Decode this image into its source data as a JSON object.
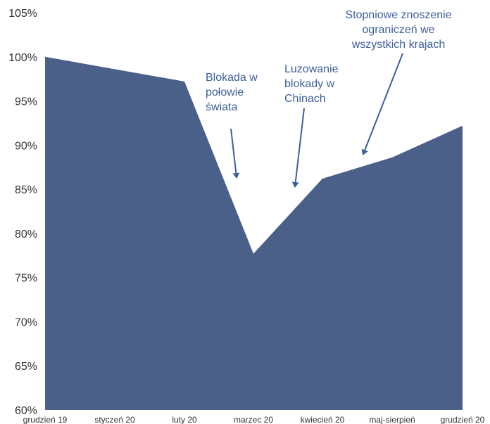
{
  "chart_data": {
    "type": "area",
    "title": "",
    "xlabel": "",
    "ylabel": "",
    "categories": [
      "grudzień 19",
      "styczeń 20",
      "luty 20",
      "marzec 20",
      "kwiecień 20",
      "maj-sierpień",
      "grudzień 20"
    ],
    "values": [
      100,
      98.6,
      97.2,
      77.7,
      86.2,
      88.6,
      92.2
    ],
    "ylim": [
      60,
      105
    ],
    "yticks": [
      "60%",
      "65%",
      "70%",
      "75%",
      "80%",
      "85%",
      "90%",
      "95%",
      "100%",
      "105%"
    ],
    "grid": false,
    "legend": "none",
    "colors": {
      "area": "#4a6088",
      "annotation_text": "#3c5f9a",
      "arrow": "#3c5f9a",
      "axis_text": "#333333"
    },
    "annotations": [
      {
        "lines": [
          "Blokada w",
          "połowie",
          "świata"
        ],
        "points_to_value": 87
      },
      {
        "lines": [
          "Luzowanie",
          "blokady w",
          "Chinach"
        ],
        "points_to_value": 85
      },
      {
        "lines": [
          "Stopniowe znoszenie",
          "ograniczeń we",
          "wszystkich krajach"
        ],
        "points_to_value": 89
      }
    ]
  }
}
